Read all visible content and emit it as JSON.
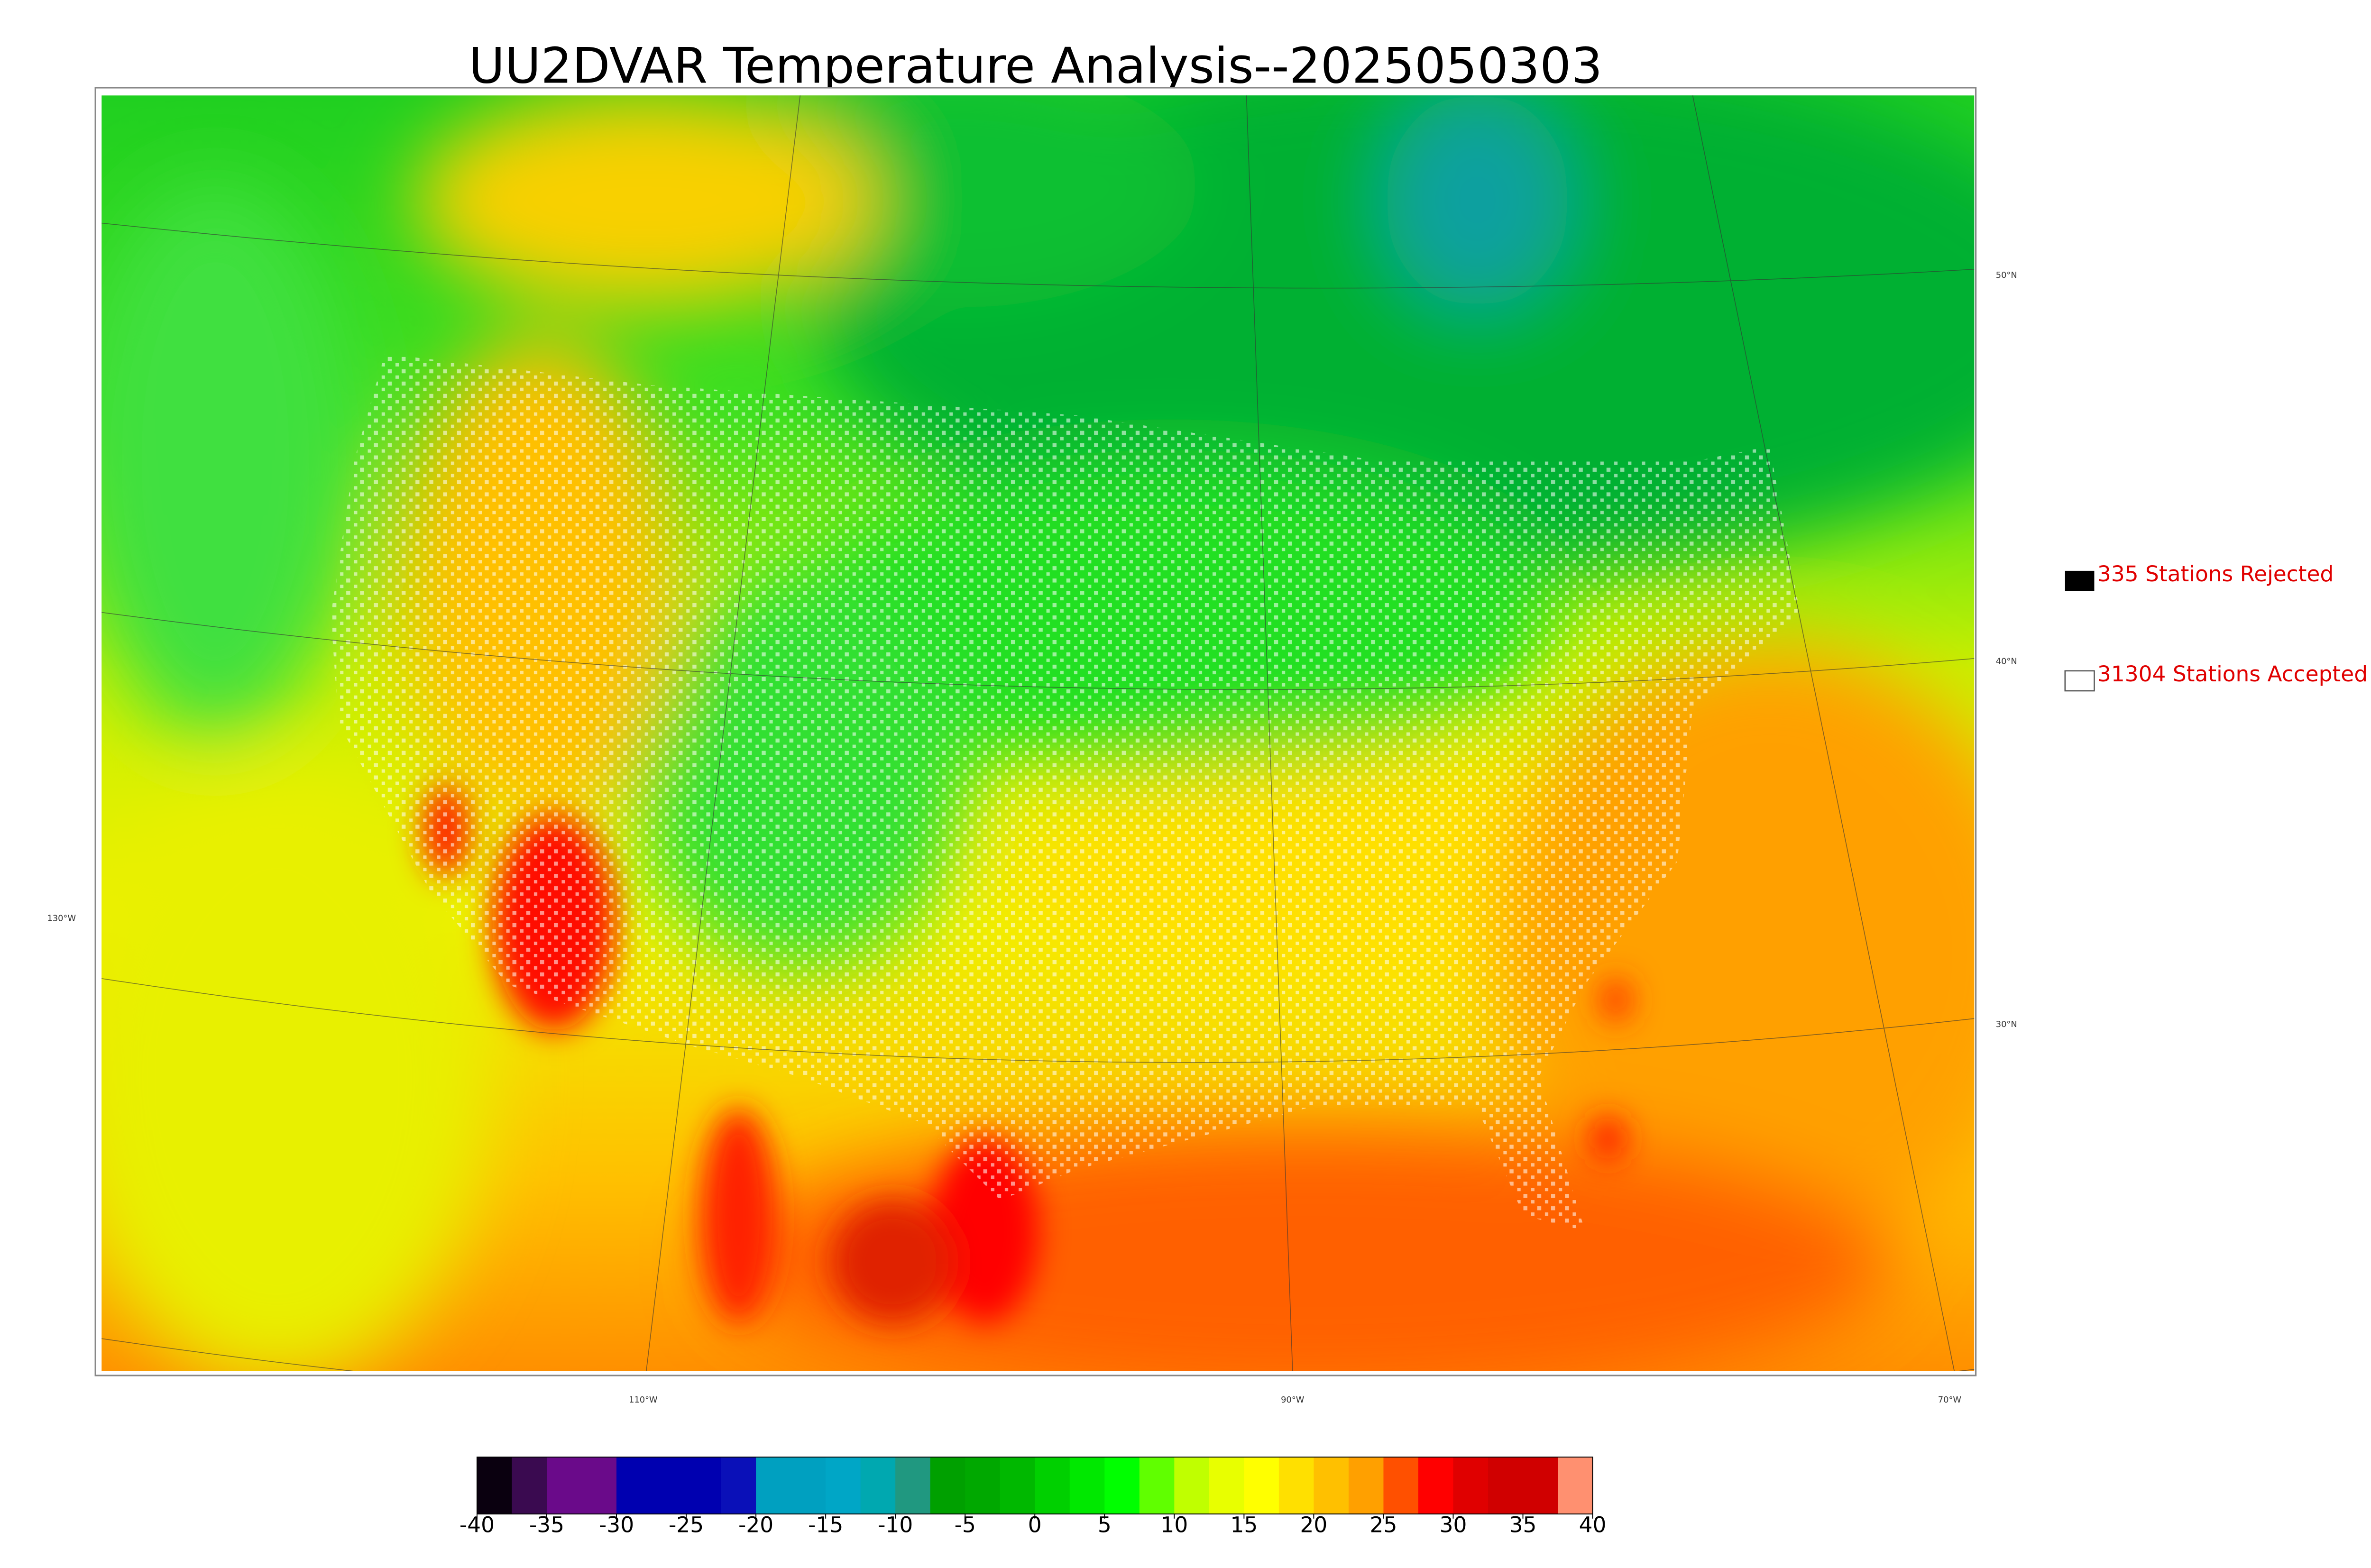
{
  "title": "UU2DVAR Temperature Analysis--2025050303",
  "legend": {
    "rejected": "335 Stations Rejected",
    "accepted": "31304 Stations Accepted"
  },
  "latitude_labels": [
    "50°N",
    "40°N",
    "30°N"
  ],
  "longitude_labels": [
    "130°W",
    "110°W",
    "90°W",
    "70°W"
  ],
  "colorbar": {
    "lim": [
      -40,
      40
    ],
    "ticks": [
      -40,
      -35,
      -30,
      -25,
      -20,
      -15,
      -10,
      -5,
      0,
      5,
      10,
      15,
      20,
      25,
      30,
      35,
      40
    ],
    "colors": [
      "#0a000f",
      "#3a0a50",
      "#6a0a8a",
      "#6a0a8a",
      "#0000b0",
      "#0000b0",
      "#0000b0",
      "#0a10b8",
      "#00a0c0",
      "#00a0c0",
      "#00a6c6",
      "#00a8b0",
      "#209880",
      "#00a000",
      "#00a800",
      "#00b800",
      "#00d000",
      "#00e800",
      "#00ff00",
      "#60ff00",
      "#c0ff00",
      "#e8ff00",
      "#ffff00",
      "#ffe000",
      "#ffc000",
      "#ffa000",
      "#ff5000",
      "#ff0000",
      "#e00000",
      "#d00000",
      "#d00000",
      "#ff9070"
    ]
  }
}
